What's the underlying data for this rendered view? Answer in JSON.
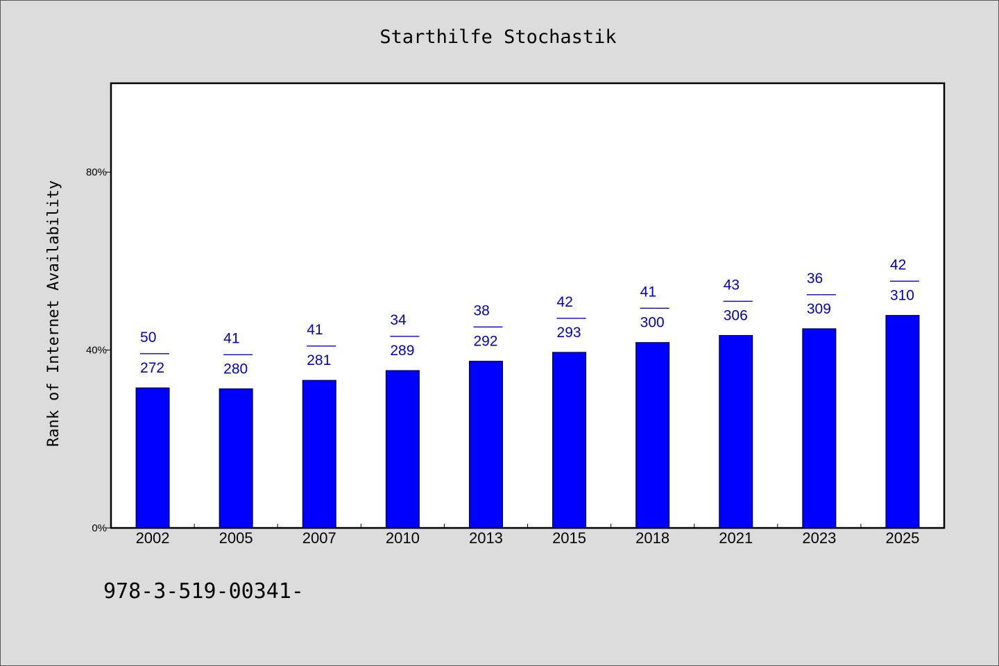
{
  "chart_data": {
    "type": "bar",
    "title": "Starthilfe Stochastik",
    "xlabel": "",
    "ylabel": "Rank of Internet Availability",
    "categories": [
      "2002",
      "2005",
      "2007",
      "2010",
      "2013",
      "2015",
      "2018",
      "2021",
      "2023",
      "2025"
    ],
    "series": [
      {
        "values": [
          31.5,
          31.3,
          33.2,
          35.4,
          37.5,
          39.5,
          41.7,
          43.3,
          44.8,
          47.8
        ],
        "color": "#0000ff"
      }
    ],
    "data_labels_top": [
      "50",
      "41",
      "41",
      "34",
      "38",
      "42",
      "41",
      "43",
      "36",
      "42"
    ],
    "data_labels_sep": "——",
    "data_labels_bottom": [
      "272",
      "280",
      "281",
      "289",
      "292",
      "293",
      "300",
      "306",
      "309",
      "310"
    ],
    "yticks": [
      0,
      40,
      80
    ],
    "ytick_labels": [
      "0%",
      "40%",
      "80%"
    ],
    "ylim": [
      0,
      100
    ],
    "grid": false,
    "legend": "none",
    "label_color": "#0000cc"
  },
  "footer": {
    "text": "978-3-519-00341-"
  }
}
